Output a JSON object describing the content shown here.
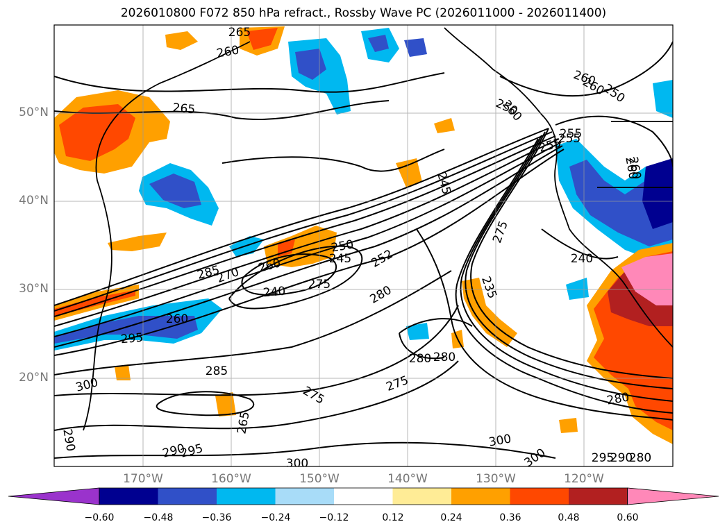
{
  "title": "2026010800 F072 850 hPa refract., Rossby Wave PC (2026011000 - 2026011400)",
  "map": {
    "lat_labels": [
      "50°N",
      "40°N",
      "30°N",
      "20°N"
    ],
    "lon_labels": [
      "170°W",
      "160°W",
      "150°W",
      "140°W",
      "130°W",
      "120°W"
    ],
    "contour_labels": [
      "265",
      "260",
      "265",
      "260",
      "255",
      "260",
      "250",
      "255",
      "250",
      "260",
      "285",
      "270",
      "260",
      "250",
      "245",
      "240",
      "252",
      "280",
      "275",
      "280",
      "290",
      "295",
      "260",
      "285",
      "300",
      "280",
      "275",
      "275",
      "265",
      "275",
      "300",
      "280",
      "300",
      "290",
      "295",
      "300",
      "235",
      "245",
      "240",
      "260",
      "255",
      "260",
      "295",
      "290",
      "280"
    ],
    "grid_lines": true,
    "coastlines": true
  },
  "colorbar": {
    "ticks": [
      "−0.60",
      "−0.48",
      "−0.36",
      "−0.24",
      "−0.12",
      "0.12",
      "0.24",
      "0.36",
      "0.48",
      "0.60"
    ],
    "colors": [
      "#9a33cc",
      "#000090",
      "#3050c8",
      "#00b8f0",
      "#a8dcf8",
      "#ffffff",
      "#ffec96",
      "#ffa000",
      "#ff4800",
      "#b22020",
      "#ff88b8"
    ]
  }
}
